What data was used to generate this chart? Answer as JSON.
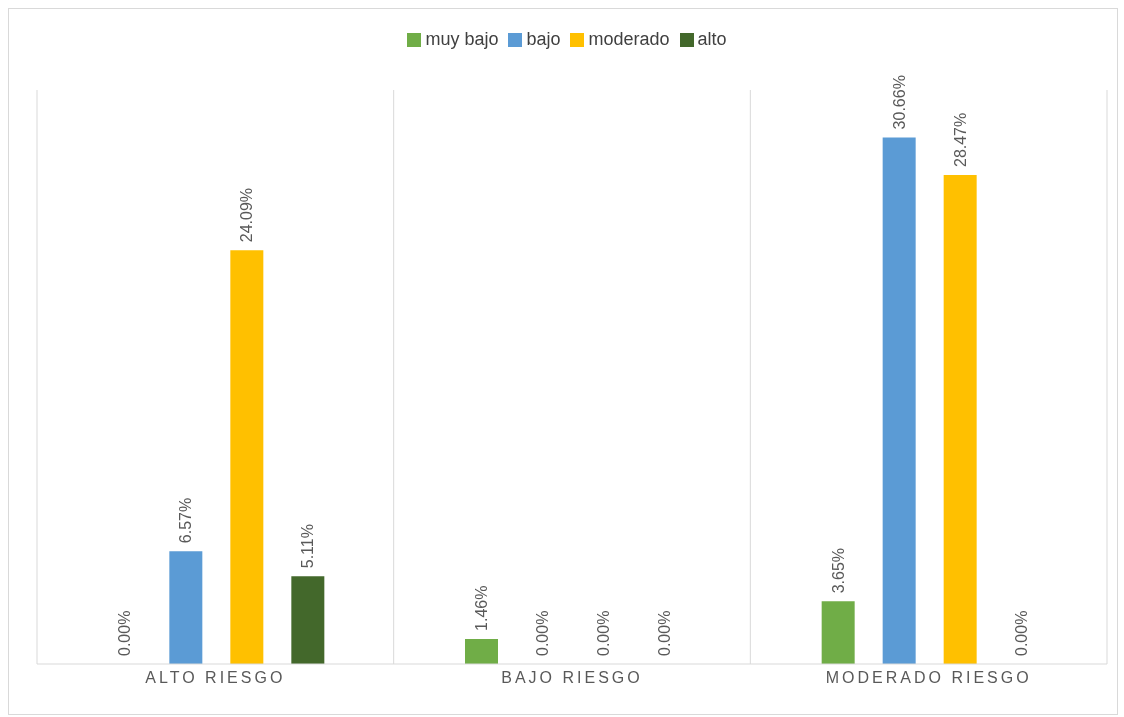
{
  "chart_data": {
    "type": "bar",
    "categories": [
      "ALTO RIESGO",
      "BAJO RIESGO",
      "MODERADO RIESGO"
    ],
    "series": [
      {
        "name": "muy bajo",
        "color": "#70ad47",
        "values": [
          0,
          1.46,
          3.65
        ],
        "value_labels": [
          "0.00%",
          "1.46%",
          "3.65%"
        ]
      },
      {
        "name": "bajo",
        "color": "#5b9bd5",
        "values": [
          6.57,
          0,
          30.66
        ],
        "value_labels": [
          "6.57%",
          "0.00%",
          "30.66%"
        ]
      },
      {
        "name": "moderado",
        "color": "#ffc000",
        "values": [
          24.09,
          0,
          28.47
        ],
        "value_labels": [
          "24.09%",
          "0.00%",
          "28.47%"
        ]
      },
      {
        "name": "alto",
        "color": "#43682b",
        "values": [
          5.11,
          0,
          0
        ],
        "value_labels": [
          "5.11%",
          "0.00%",
          "0.00%"
        ]
      }
    ],
    "grid": "x",
    "legend": "top"
  }
}
